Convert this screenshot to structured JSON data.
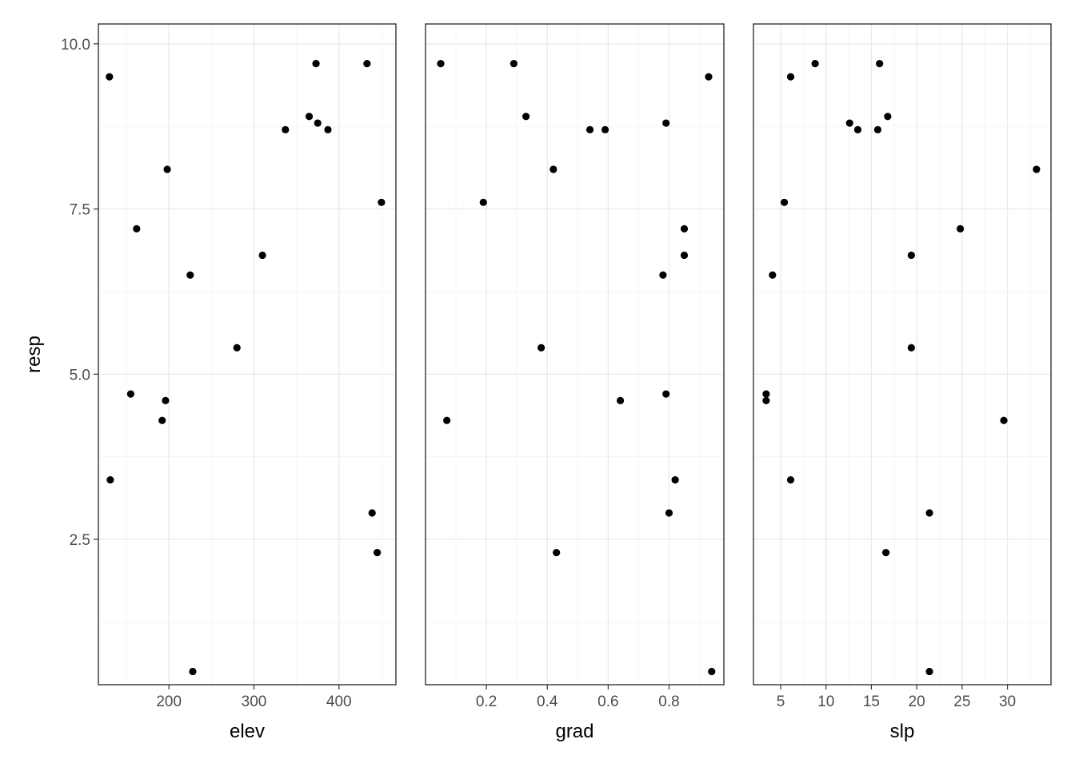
{
  "chart_data": {
    "type": "scatter",
    "ylabel": "resp",
    "ylim": [
      0.3,
      10.3
    ],
    "yticks": [
      2.5,
      5.0,
      7.5,
      10.0
    ],
    "ytick_labels": [
      "2.5",
      "5.0",
      "7.5",
      "10.0"
    ],
    "grid": true,
    "panels": [
      {
        "xlabel": "elev",
        "xlim": [
          117,
          467
        ],
        "xticks": [
          200,
          300,
          400
        ],
        "xtick_labels": [
          "200",
          "300",
          "400"
        ],
        "points": [
          [
            130,
            9.5
          ],
          [
            131,
            3.4
          ],
          [
            155,
            4.7
          ],
          [
            162,
            7.2
          ],
          [
            192,
            4.3
          ],
          [
            196,
            4.6
          ],
          [
            198,
            8.1
          ],
          [
            225,
            6.5
          ],
          [
            228,
            0.5
          ],
          [
            280,
            5.4
          ],
          [
            310,
            6.8
          ],
          [
            337,
            8.7
          ],
          [
            365,
            8.9
          ],
          [
            373,
            9.7
          ],
          [
            375,
            8.8
          ],
          [
            387,
            8.7
          ],
          [
            433,
            9.7
          ],
          [
            439,
            2.9
          ],
          [
            445,
            2.3
          ],
          [
            450,
            7.6
          ]
        ]
      },
      {
        "xlabel": "grad",
        "xlim": [
          0.0,
          0.98
        ],
        "xticks": [
          0.2,
          0.4,
          0.6,
          0.8
        ],
        "xtick_labels": [
          "0.2",
          "0.4",
          "0.6",
          "0.8"
        ],
        "points": [
          [
            0.05,
            9.7
          ],
          [
            0.07,
            4.3
          ],
          [
            0.19,
            7.6
          ],
          [
            0.29,
            9.7
          ],
          [
            0.33,
            8.9
          ],
          [
            0.38,
            5.4
          ],
          [
            0.42,
            8.1
          ],
          [
            0.43,
            2.3
          ],
          [
            0.54,
            8.7
          ],
          [
            0.59,
            8.7
          ],
          [
            0.64,
            4.6
          ],
          [
            0.78,
            6.5
          ],
          [
            0.79,
            8.8
          ],
          [
            0.79,
            4.7
          ],
          [
            0.8,
            2.9
          ],
          [
            0.82,
            3.4
          ],
          [
            0.85,
            7.2
          ],
          [
            0.85,
            6.8
          ],
          [
            0.93,
            9.5
          ],
          [
            0.94,
            0.5
          ]
        ]
      },
      {
        "xlabel": "slp",
        "xlim": [
          2.0,
          34.8
        ],
        "xticks": [
          5,
          10,
          15,
          20,
          25,
          30
        ],
        "xtick_labels": [
          "5",
          "10",
          "15",
          "20",
          "25",
          "30"
        ],
        "points": [
          [
            3.4,
            4.7
          ],
          [
            3.4,
            4.6
          ],
          [
            4.1,
            6.5
          ],
          [
            5.4,
            7.6
          ],
          [
            6.1,
            9.5
          ],
          [
            6.1,
            3.4
          ],
          [
            8.8,
            9.7
          ],
          [
            12.6,
            8.8
          ],
          [
            13.5,
            8.7
          ],
          [
            15.7,
            8.7
          ],
          [
            15.9,
            9.7
          ],
          [
            16.6,
            2.3
          ],
          [
            16.8,
            8.9
          ],
          [
            19.4,
            6.8
          ],
          [
            19.4,
            5.4
          ],
          [
            21.4,
            2.9
          ],
          [
            21.4,
            0.5
          ],
          [
            24.8,
            7.2
          ],
          [
            29.6,
            4.3
          ],
          [
            33.2,
            8.1
          ]
        ]
      }
    ]
  }
}
